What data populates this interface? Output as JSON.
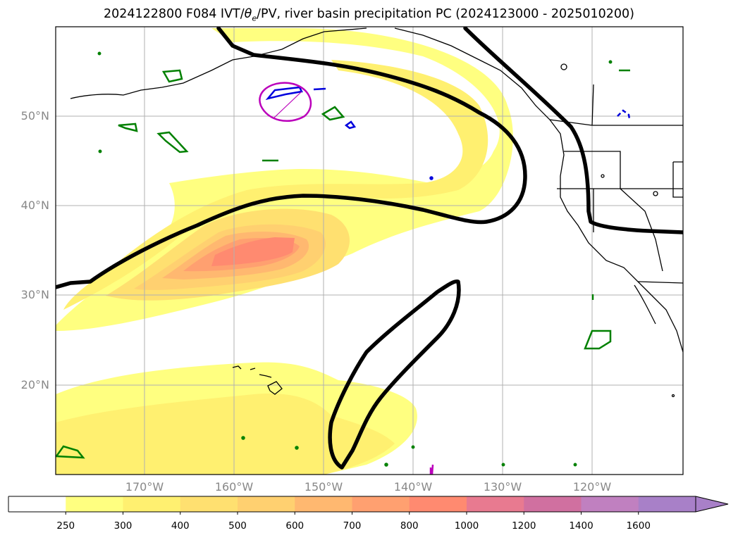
{
  "title": {
    "text_pre": "2024122800 F084 IVT/",
    "theta": "θ",
    "theta_sub": "e",
    "text_post": "/PV, river basin precipitation PC (2024123000 - 2025010200)"
  },
  "map": {
    "latitude_labels": [
      "50°N",
      "40°N",
      "30°N",
      "20°N"
    ],
    "longitude_labels": [
      "170°W",
      "160°W",
      "150°W",
      "140°W",
      "130°W",
      "120°W"
    ],
    "lat_range": [
      10,
      60
    ],
    "lon_range": [
      -180,
      -110
    ],
    "grid": true
  },
  "colorbar": {
    "levels": [
      "250",
      "300",
      "400",
      "500",
      "600",
      "700",
      "800",
      "1000",
      "1200",
      "1400",
      "1600"
    ],
    "colors": [
      "#ffffff",
      "#ffff80",
      "#fff070",
      "#ffe070",
      "#ffd070",
      "#ffb870",
      "#ffa070",
      "#ff8a70",
      "#e87a90",
      "#d070a0",
      "#c080c0",
      "#a880c8"
    ],
    "extend": "max"
  },
  "colors": {
    "pv_contour": "#000000",
    "precip_green": "#008000",
    "precip_blue": "#0000dd",
    "precip_magenta": "#bb00bb",
    "grid": "#b0b0b0",
    "tick_label": "#888888"
  }
}
